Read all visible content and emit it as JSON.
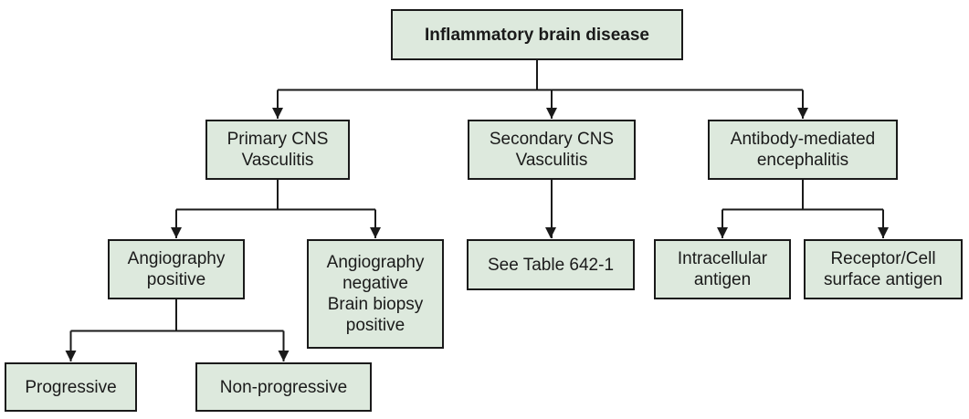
{
  "diagram": {
    "colors": {
      "box_fill": "#dde9dd",
      "stroke": "#1a1a1a",
      "text": "#1a1a1a"
    },
    "nodes": {
      "root": {
        "label": "Inflammatory brain disease"
      },
      "primary": {
        "line1": "Primary CNS",
        "line2": "Vasculitis"
      },
      "secondary": {
        "line1": "Secondary CNS",
        "line2": "Vasculitis"
      },
      "antibody": {
        "line1": "Antibody-mediated",
        "line2": "encephalitis"
      },
      "angio_pos": {
        "line1": "Angiography",
        "line2": "positive"
      },
      "angio_neg": {
        "line1": "Angiography",
        "line2": "negative",
        "line3": "Brain biopsy",
        "line4": "positive"
      },
      "see_table": {
        "label": "See Table 642-1"
      },
      "intracellular": {
        "line1": "Intracellular",
        "line2": "antigen"
      },
      "receptor": {
        "line1": "Receptor/Cell",
        "line2": "surface antigen"
      },
      "progressive": {
        "label": "Progressive"
      },
      "nonprogressive": {
        "label": "Non-progressive"
      }
    },
    "edges": [
      {
        "from": "root",
        "to": "primary"
      },
      {
        "from": "root",
        "to": "secondary"
      },
      {
        "from": "root",
        "to": "antibody"
      },
      {
        "from": "primary",
        "to": "angio_pos"
      },
      {
        "from": "primary",
        "to": "angio_neg"
      },
      {
        "from": "secondary",
        "to": "see_table"
      },
      {
        "from": "antibody",
        "to": "intracellular"
      },
      {
        "from": "antibody",
        "to": "receptor"
      },
      {
        "from": "angio_pos",
        "to": "progressive"
      },
      {
        "from": "angio_pos",
        "to": "nonprogressive"
      }
    ]
  }
}
